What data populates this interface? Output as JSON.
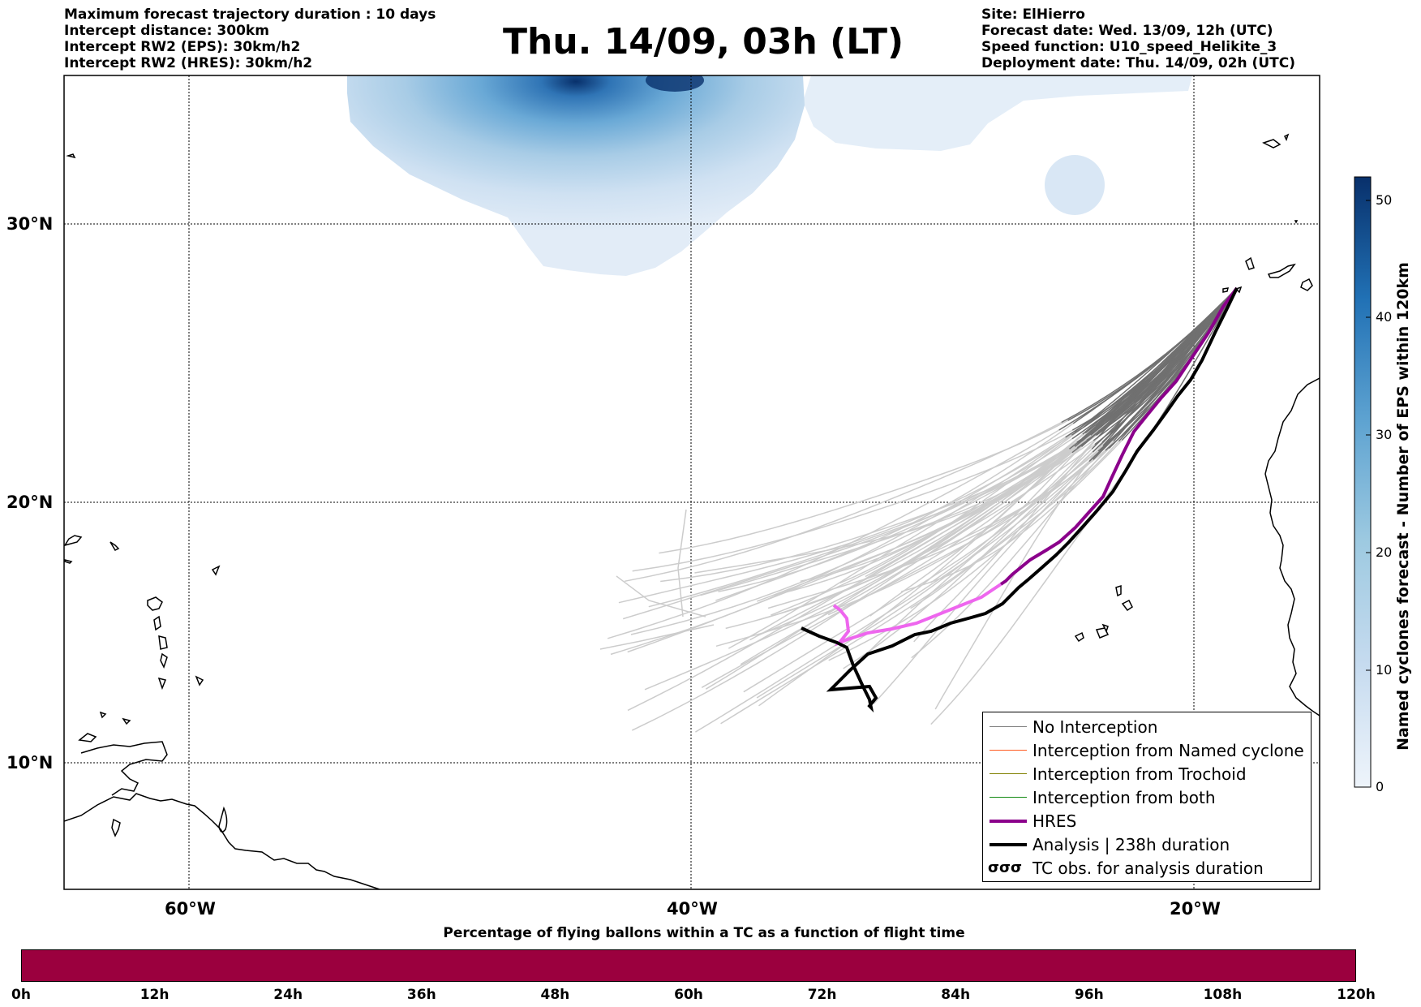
{
  "header": {
    "left": [
      "Maximum forecast trajectory duration : 10 days",
      "Intercept distance: 300km",
      "Intercept RW2 (EPS):  30km/h2",
      "Intercept RW2 (HRES): 30km/h2"
    ],
    "title": "Thu. 14/09, 03h (LT)",
    "right": [
      "Site: ElHierro",
      "Forecast date: Wed. 13/09, 12h (UTC)",
      "Speed function: U10_speed_Helikite_3",
      "Deployment date: Thu. 14/09, 02h (UTC)"
    ]
  },
  "map": {
    "lat_labels": [
      "30°N",
      "20°N",
      "10°N"
    ],
    "lon_labels": [
      "60°W",
      "40°W",
      "20°W"
    ]
  },
  "colorbar": {
    "title": "Named cyclones forecast - Number of EPS within 120km",
    "ticks": [
      "0",
      "10",
      "20",
      "30",
      "40",
      "50"
    ],
    "colors": [
      "#e6eff9",
      "#c6dbef",
      "#9ecae1",
      "#6baed6",
      "#3182bd",
      "#08306b"
    ]
  },
  "legend": {
    "items": [
      {
        "label": "No Interception",
        "color": "#808080"
      },
      {
        "label": "Interception from Named cyclone",
        "color": "#ff5a1f"
      },
      {
        "label": "Interception from Trochoid",
        "color": "#808000"
      },
      {
        "label": "Interception from both",
        "color": "#138a13"
      },
      {
        "label": "HRES",
        "color": "#8b008b"
      },
      {
        "label": "Analysis | 238h duration",
        "color": "#000000"
      }
    ],
    "tc_obs_label": "TC obs. for analysis duration",
    "tc_obs_symbol": "σσσ"
  },
  "balloon_bar": {
    "title": "Percentage of flying ballons within a TC as a function of flight time",
    "ticks": [
      "0h",
      "12h",
      "24h",
      "36h",
      "48h",
      "60h",
      "72h",
      "84h",
      "96h",
      "108h",
      "120h"
    ],
    "color": "#9b003e"
  }
}
